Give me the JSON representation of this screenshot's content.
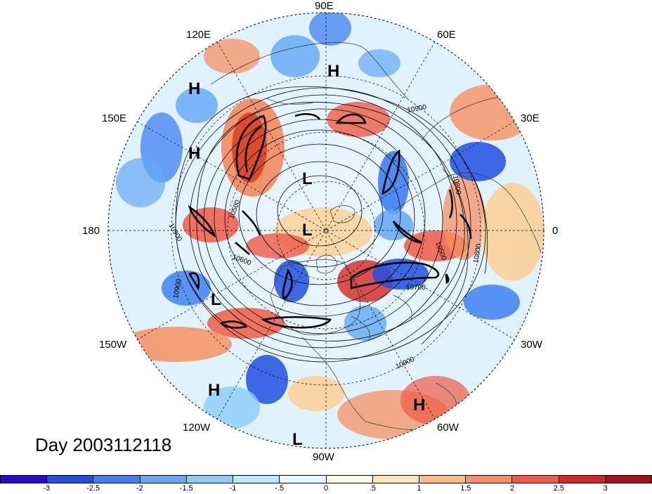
{
  "map": {
    "longitude_labels": [
      "90E",
      "60E",
      "30E",
      "0",
      "30W",
      "60W",
      "90W",
      "120W",
      "150W",
      "180",
      "150E",
      "120E"
    ],
    "pressure_labels": [
      {
        "symbol": "H"
      },
      {
        "symbol": "H"
      },
      {
        "symbol": "H"
      },
      {
        "symbol": "L"
      },
      {
        "symbol": "L"
      },
      {
        "symbol": "L"
      },
      {
        "symbol": "H"
      },
      {
        "symbol": "H"
      },
      {
        "symbol": "L"
      }
    ],
    "contour_labels": [
      "10900",
      "10800",
      "10500",
      "10700",
      "10500",
      "10600",
      "10900",
      "10900",
      "10900",
      "10800"
    ],
    "day_label": "Day 2003112118"
  },
  "colorbar": {
    "colors": [
      "#2a0ad2",
      "#1f4fe2",
      "#3f80f2",
      "#62a8f6",
      "#89cdfa",
      "#b3ecfe",
      "#e4f8ff",
      "#fffbe0",
      "#fde8b0",
      "#fbbf83",
      "#f69062",
      "#ee5a43",
      "#d52520",
      "#a50d18"
    ],
    "tick_labels": [
      "-3",
      "-2.5",
      "-2",
      "-1.5",
      "-1",
      "-.5",
      "0",
      ".5",
      "1",
      "1.5",
      "2",
      "2.5",
      "3"
    ]
  }
}
